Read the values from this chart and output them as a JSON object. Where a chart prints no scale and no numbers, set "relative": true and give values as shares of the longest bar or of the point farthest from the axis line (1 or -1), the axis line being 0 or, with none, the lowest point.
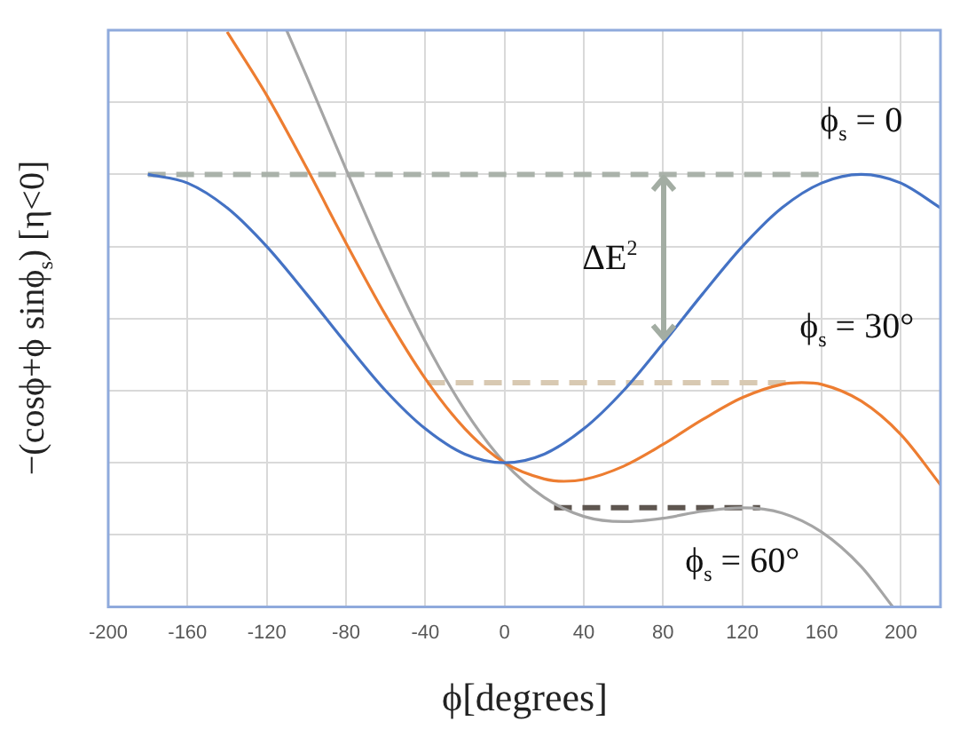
{
  "chart_data": {
    "type": "line",
    "relative": true,
    "xlabel": "ϕ[degrees]",
    "ylabel": "−(cosϕ+ϕ sinϕ$_{s}$) [η<0]",
    "xlim": [
      -200,
      220
    ],
    "xticks": [
      -200,
      -160,
      -120,
      -80,
      -40,
      0,
      40,
      80,
      120,
      160,
      200
    ],
    "grid": true,
    "legend": false,
    "marker": "none",
    "line_style": "solid",
    "series": [
      {
        "name": "ϕ$_{s}$ = 0",
        "color": "#4472c4",
        "x": [
          -180,
          -160,
          -140,
          -120,
          -100,
          -80,
          -60,
          -40,
          -20,
          0,
          20,
          40,
          60,
          80,
          100,
          120,
          140,
          160,
          180,
          200,
          220
        ],
        "values": [
          0.75,
          0.735,
          0.692,
          0.625,
          0.543,
          0.457,
          0.375,
          0.309,
          0.265,
          0.25,
          0.265,
          0.309,
          0.375,
          0.457,
          0.543,
          0.625,
          0.692,
          0.735,
          0.75,
          0.735,
          0.692
        ]
      },
      {
        "name": "ϕ$_{s}$ = 30°",
        "color": "#ed7d31",
        "x": [
          -140,
          -120,
          -100,
          -80,
          -60,
          -40,
          -20,
          0,
          20,
          30,
          40,
          60,
          80,
          100,
          120,
          140,
          150,
          160,
          180,
          200,
          220
        ],
        "values": [
          0.997,
          0.887,
          0.762,
          0.631,
          0.506,
          0.396,
          0.309,
          0.25,
          0.222,
          0.218,
          0.221,
          0.244,
          0.282,
          0.325,
          0.363,
          0.386,
          0.389,
          0.386,
          0.357,
          0.299,
          0.212
        ]
      },
      {
        "name": "ϕ$_{s}$ = 60°",
        "color": "#a5a5a5",
        "x": [
          -110,
          -100,
          -80,
          -60,
          -40,
          -20,
          0,
          20,
          40,
          60,
          80,
          100,
          120,
          140,
          160,
          180,
          196
        ],
        "values": [
          1,
          0.921,
          0.759,
          0.602,
          0.46,
          0.341,
          0.25,
          0.19,
          0.157,
          0.148,
          0.154,
          0.166,
          0.172,
          0.163,
          0.13,
          0.07,
          0
        ]
      },
      {
        "color": "#aab2aa",
        "line_style": "dashed",
        "x": [
          -180,
          163
        ],
        "values": [
          0.75,
          0.75
        ]
      },
      {
        "color": "#d8c9b2",
        "line_style": "dashed",
        "x": [
          -39,
          145
        ],
        "values": [
          0.389,
          0.389
        ]
      },
      {
        "color": "#5e5650",
        "line_style": "dashed",
        "x": [
          25,
          129
        ],
        "values": [
          0.172,
          0.172
        ]
      }
    ],
    "annotations": [
      {
        "text": "ΔE$^{2}$",
        "x": 80,
        "y": 0.46
      }
    ]
  }
}
